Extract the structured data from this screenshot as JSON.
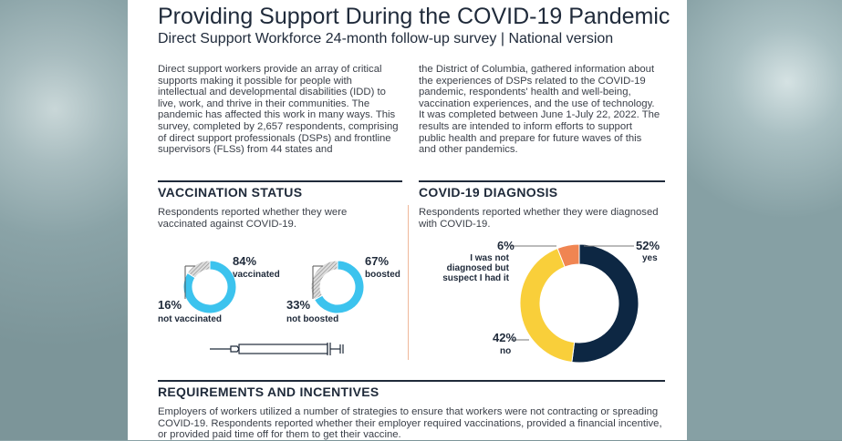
{
  "title": "Providing Support During the COVID-19 Pandemic",
  "subtitle": "Direct Support Workforce 24-month follow-up survey | National version",
  "intro_left": "Direct support workers provide an array of critical supports making it possible for people with intellectual and developmental disabilities (IDD) to live, work, and thrive in their communities. The pandemic has affected this work in many ways. This survey, completed by 2,657 respondents, comprising of direct support professionals (DSPs) and frontline supervisors (FLSs) from 44 states and",
  "intro_right": "the District of Columbia, gathered information about the experiences of DSPs related to the COVID-19 pandemic, respondents' health and well-being, vaccination experiences, and the use of technology. It was completed between June 1-July 22, 2022. The results are intended to inform efforts to support public health and prepare for future waves of this and other pandemics.",
  "vaccination": {
    "heading": "VACCINATION STATUS",
    "desc": "Respondents reported whether they were vaccinated against COVID-19.",
    "vaccinated": {
      "pct": "84%",
      "label": "vaccinated",
      "value": 84
    },
    "not_vaccinated": {
      "pct": "16%",
      "label": "not vaccinated",
      "value": 16
    },
    "boosted": {
      "pct": "67%",
      "label": "boosted",
      "value": 67
    },
    "not_boosted": {
      "pct": "33%",
      "label": "not boosted",
      "value": 33
    },
    "colors": {
      "main": "#3cc3ee",
      "rest": "#b5b5b5"
    }
  },
  "diagnosis": {
    "heading": "COVID-19 DIAGNOSIS",
    "desc": "Respondents reported whether they were diagnosed with COVID-19.",
    "slices": [
      {
        "pct": "52%",
        "label": "yes",
        "value": 52,
        "color": "#0d2743"
      },
      {
        "pct": "42%",
        "label": "no",
        "value": 42,
        "color": "#f9cf3a"
      },
      {
        "pct": "6%",
        "label": "I was not diagnosed but suspect I had it",
        "value": 6,
        "color": "#f08552"
      }
    ]
  },
  "requirements": {
    "heading": "REQUIREMENTS AND INCENTIVES",
    "desc": "Employers of workers utilized a number of strategies to ensure that workers were not contracting or spreading COVID-19. Respondents reported whether their employer required vaccinations, provided a financial incentive, or provided paid time off for them to get their vaccine."
  }
}
